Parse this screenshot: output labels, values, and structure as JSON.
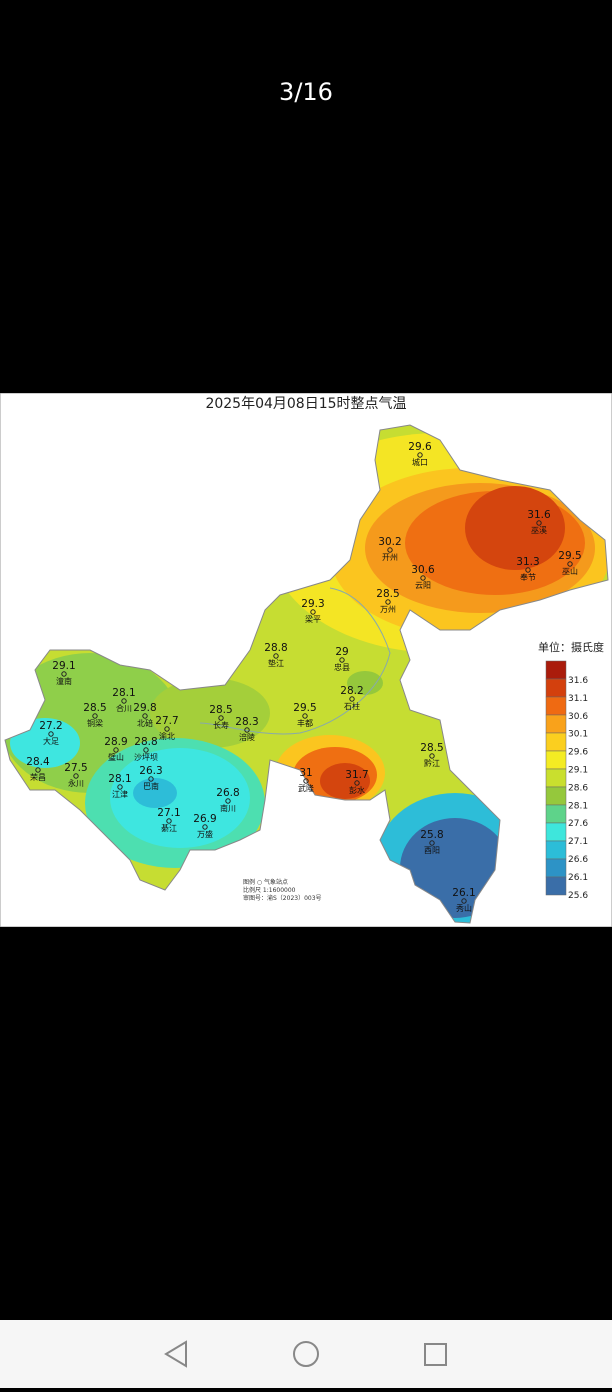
{
  "viewer": {
    "counter": "3/16"
  },
  "map": {
    "title": "2025年04月08日15时整点气温",
    "stations": [
      {
        "value": 29.6,
        "name": "城口"
      },
      {
        "value": 31.6,
        "name": "巫溪"
      },
      {
        "value": 30.2,
        "name": "开州"
      },
      {
        "value": 29.5,
        "name": "巫山"
      },
      {
        "value": 31.3,
        "name": "奉节"
      },
      {
        "value": 30.6,
        "name": "云阳"
      },
      {
        "value": 28.5,
        "name": "万州"
      },
      {
        "value": 29.3,
        "name": "梁平"
      },
      {
        "value": 28.8,
        "name": "垫江"
      },
      {
        "value": 29,
        "name": "忠县"
      },
      {
        "value": 28.2,
        "name": "石柱"
      },
      {
        "value": 29.1,
        "name": "潼南"
      },
      {
        "value": 28.1,
        "name": "合川"
      },
      {
        "value": 28.5,
        "name": "铜梁"
      },
      {
        "value": 29.8,
        "name": "北碚"
      },
      {
        "value": 27.7,
        "name": "渝北"
      },
      {
        "value": 28.5,
        "name": "长寿"
      },
      {
        "value": 28.3,
        "name": "涪陵"
      },
      {
        "value": 29.5,
        "name": "丰都"
      },
      {
        "value": 27.2,
        "name": "大足"
      },
      {
        "value": 28.9,
        "name": "璧山"
      },
      {
        "value": 28.8,
        "name": "沙坪坝"
      },
      {
        "value": 28.5,
        "name": "黔江"
      },
      {
        "value": 28.4,
        "name": "荣昌"
      },
      {
        "value": 27.5,
        "name": "永川"
      },
      {
        "value": 26.3,
        "name": "巴南"
      },
      {
        "value": 28.1,
        "name": "江津"
      },
      {
        "value": 31,
        "name": "武隆"
      },
      {
        "value": 31.7,
        "name": "彭水"
      },
      {
        "value": 26.8,
        "name": "南川"
      },
      {
        "value": 27.1,
        "name": "綦江"
      },
      {
        "value": 26.9,
        "name": "万盛"
      },
      {
        "value": 25.8,
        "name": "酉阳"
      },
      {
        "value": 26.1,
        "name": "秀山"
      }
    ],
    "legend": {
      "title": "单位：摄氏度",
      "values": [
        31.6,
        31.1,
        30.6,
        30.1,
        29.6,
        29.1,
        28.6,
        28.1,
        27.6,
        27.1,
        26.6,
        26.1,
        25.6
      ]
    },
    "footer": [
      "图例 ○ 气象站点",
      "比例尺 1:1600000",
      "审图号：渝S（2023）003号"
    ]
  }
}
